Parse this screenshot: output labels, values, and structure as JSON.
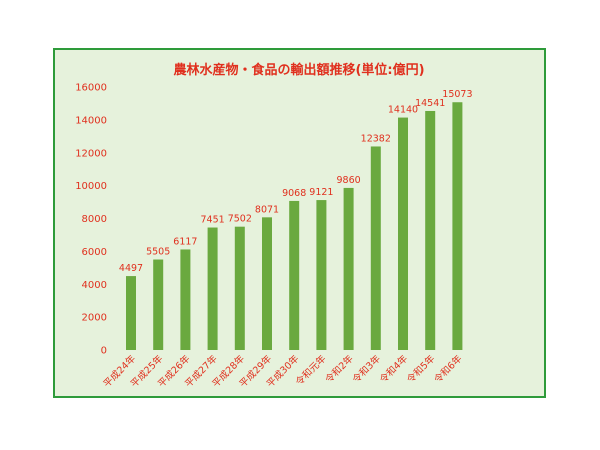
{
  "chart_data": {
    "type": "bar",
    "title": "農林水産物・食品の輸出額推移(単位:億円)",
    "xlabel": "",
    "ylabel": "",
    "categories": [
      "平成24年",
      "平成25年",
      "平成26年",
      "平成27年",
      "平成28年",
      "平成29年",
      "平成30年",
      "令和元年",
      "令和2年",
      "令和3年",
      "令和4年",
      "令和5年",
      "令和6年"
    ],
    "values": [
      4497,
      5505,
      6117,
      7451,
      7502,
      8071,
      9068,
      9121,
      9860,
      12382,
      14140,
      14541,
      15073
    ],
    "ylim": [
      0,
      16000
    ],
    "yticks": [
      0,
      2000,
      4000,
      6000,
      8000,
      10000,
      12000,
      14000,
      16000
    ],
    "grid": false,
    "legend": "none",
    "colors": {
      "bar": "#6aa93f",
      "text": "#e0301e",
      "background": "#e6f2dc",
      "border": "#2e9b3a"
    }
  }
}
